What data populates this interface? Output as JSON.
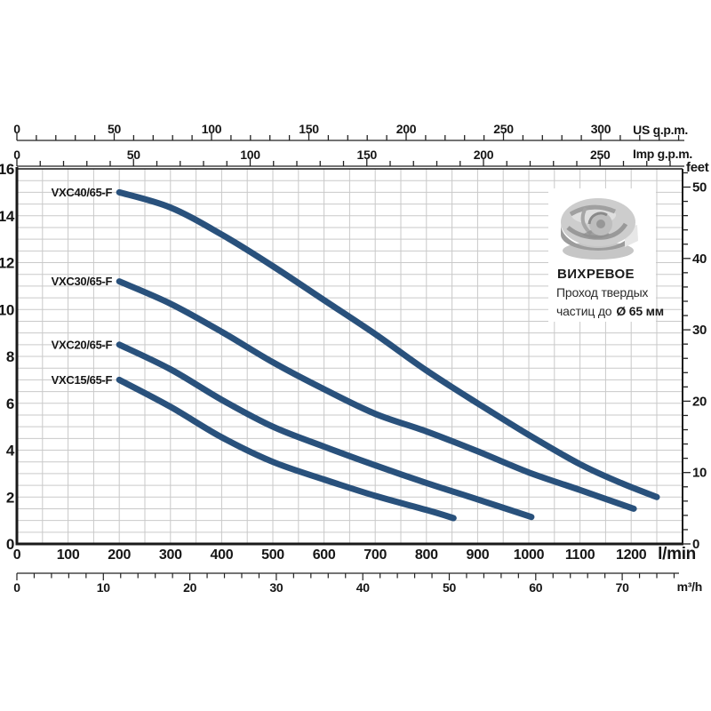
{
  "chart_data": {
    "type": "line",
    "title": "",
    "series": [
      {
        "name": "VXC40/65-F",
        "points": [
          [
            200,
            15.0
          ],
          [
            300,
            14.35
          ],
          [
            400,
            13.2
          ],
          [
            500,
            11.85
          ],
          [
            600,
            10.4
          ],
          [
            700,
            8.95
          ],
          [
            800,
            7.4
          ],
          [
            900,
            6.0
          ],
          [
            1000,
            4.65
          ],
          [
            1100,
            3.4
          ],
          [
            1180,
            2.6
          ],
          [
            1250,
            2.0
          ]
        ]
      },
      {
        "name": "VXC30/65-F",
        "points": [
          [
            200,
            11.2
          ],
          [
            300,
            10.25
          ],
          [
            400,
            9.05
          ],
          [
            500,
            7.75
          ],
          [
            600,
            6.6
          ],
          [
            700,
            5.55
          ],
          [
            800,
            4.8
          ],
          [
            900,
            3.95
          ],
          [
            1000,
            3.05
          ],
          [
            1100,
            2.3
          ],
          [
            1205,
            1.5
          ]
        ]
      },
      {
        "name": "VXC20/65-F",
        "points": [
          [
            200,
            8.5
          ],
          [
            300,
            7.45
          ],
          [
            400,
            6.15
          ],
          [
            500,
            5.0
          ],
          [
            600,
            4.15
          ],
          [
            700,
            3.35
          ],
          [
            800,
            2.6
          ],
          [
            900,
            1.9
          ],
          [
            1005,
            1.15
          ]
        ]
      },
      {
        "name": "VXC15/65-F",
        "points": [
          [
            200,
            7.0
          ],
          [
            300,
            5.85
          ],
          [
            400,
            4.55
          ],
          [
            500,
            3.5
          ],
          [
            600,
            2.75
          ],
          [
            700,
            2.05
          ],
          [
            800,
            1.45
          ],
          [
            853,
            1.1
          ]
        ]
      }
    ],
    "x_axes": {
      "l_min": {
        "unit": "l/min",
        "labels": [
          0,
          100,
          200,
          300,
          400,
          500,
          600,
          700,
          800,
          900,
          1000,
          1100,
          1200
        ],
        "minor_step": 50,
        "range": [
          0,
          1300
        ]
      },
      "us_gpm": {
        "unit": "US g.p.m.",
        "labels": [
          0,
          50,
          100,
          150,
          200,
          250,
          300
        ],
        "minor_step": 10,
        "range": [
          0,
          340
        ]
      },
      "imp_gpm": {
        "unit": "Imp g.p.m.",
        "labels": [
          0,
          50,
          100,
          150,
          200,
          250
        ],
        "minor_step": 10,
        "range": [
          0,
          280
        ]
      },
      "m3_h": {
        "unit": "m³/h",
        "labels": [
          0,
          10,
          20,
          30,
          40,
          50,
          60,
          70
        ],
        "minor_step": 2,
        "range": [
          0,
          76
        ]
      }
    },
    "y_axes": {
      "meters": {
        "unit": "",
        "labels": [
          0,
          2,
          4,
          6,
          8,
          10,
          12,
          14,
          16
        ],
        "minor_step": 0.5,
        "range": [
          0,
          16
        ]
      },
      "feet": {
        "unit": "feet",
        "labels": [
          0,
          10,
          20,
          30,
          40,
          50
        ],
        "minor_step": 2,
        "range": [
          0,
          52
        ]
      }
    },
    "grid": "on",
    "colors": {
      "curve": "#29517c",
      "grid": "#c9c9c9",
      "axis": "#1a1a1a",
      "curve_label": "#1a3354"
    }
  },
  "annotation": {
    "title": "ВИХРЕВОЕ",
    "line1": "Проход твердых",
    "line2_a": "частиц до",
    "line2_b": "Ø 65 мм"
  }
}
